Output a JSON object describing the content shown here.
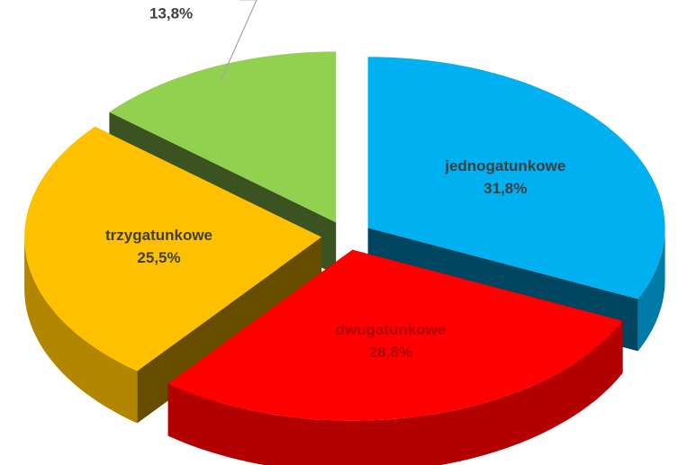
{
  "chart_data": {
    "type": "pie3d",
    "categories": [
      "jednogatunkowe",
      "dwugatunkowe",
      "trzygatunkowe",
      "cztery- i więcej gatunkowe"
    ],
    "values": [
      31.8,
      28.8,
      25.5,
      13.8
    ],
    "value_labels": [
      "31,8%",
      "28,8%",
      "25,5%",
      "13,8%"
    ],
    "colors": [
      "#00b0f0",
      "#ff0000",
      "#ffc000",
      "#92d050"
    ]
  }
}
